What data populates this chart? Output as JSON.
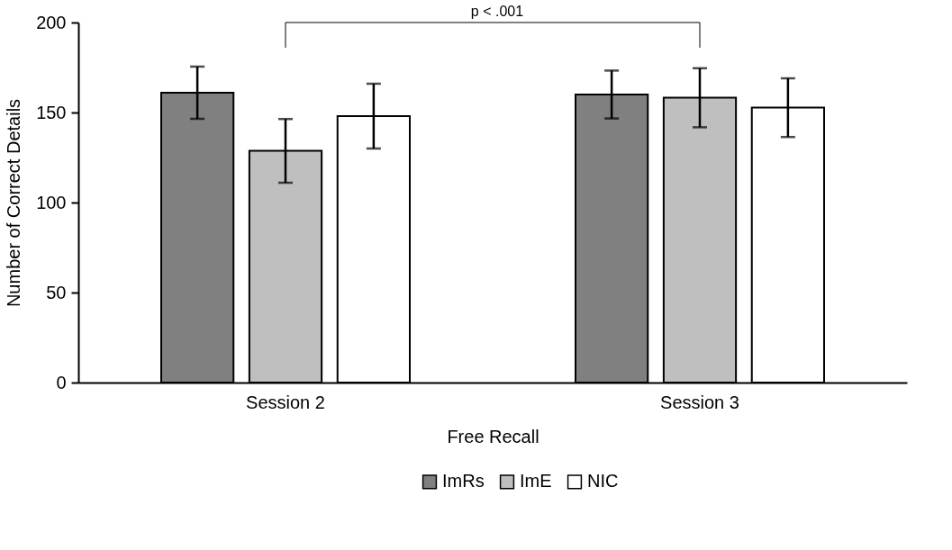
{
  "chart_data": {
    "type": "bar",
    "xlabel": "Free Recall",
    "ylabel": "Number of Correct Details",
    "categories": [
      "Session 2",
      "Session 3"
    ],
    "series": [
      {
        "name": "ImRs",
        "color": "#808080",
        "values": [
          161,
          160
        ],
        "errors": [
          14.5,
          13.3
        ]
      },
      {
        "name": "ImE",
        "color": "#bfbfbf",
        "values": [
          128.7,
          158.2
        ],
        "errors": [
          17.7,
          16.4
        ]
      },
      {
        "name": "NIC",
        "color": "#ffffff",
        "values": [
          148,
          152.7
        ],
        "errors": [
          18,
          16.3
        ]
      }
    ],
    "ylim": [
      0,
      200
    ],
    "yticks": [
      0,
      50,
      100,
      150,
      200
    ],
    "grid": false,
    "legend": "bottom",
    "annotations": [
      "p < .001"
    ]
  }
}
